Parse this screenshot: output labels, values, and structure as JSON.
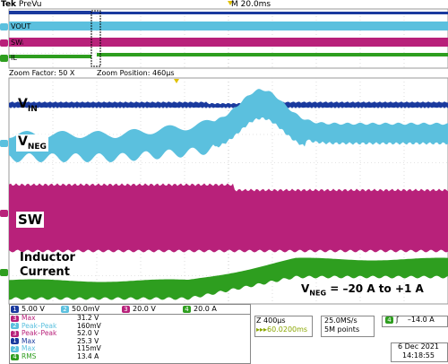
{
  "header": {
    "brand": "Tek",
    "mode": "PreVu",
    "timebase_top": "M 20.0ms"
  },
  "overview": {
    "labels": {
      "vout": "VOUT",
      "sw": "SWᵢ",
      "il": "IL"
    }
  },
  "zoom": {
    "factor": "Zoom Factor: 50 X",
    "position": "Zoom Position: 460µs"
  },
  "traces": {
    "vin": {
      "label": "V",
      "sub": "IN"
    },
    "vneg": {
      "label": "V",
      "sub": "NEG"
    },
    "sw": {
      "label": "SW"
    },
    "inductor": {
      "line1": "Inductor",
      "line2": "Current"
    }
  },
  "annotation": {
    "text_pre": "V",
    "sub": "NEG",
    "text_post": " = –20 A to +1 A"
  },
  "channels": [
    {
      "num": "1",
      "value": "5.00 V",
      "color": "#1a3a9e"
    },
    {
      "num": "2",
      "value": "50.0mV",
      "color": "#5bc0de"
    },
    {
      "num": "3",
      "value": "20.0 V",
      "color": "#b8217a"
    },
    {
      "num": "4",
      "value": "20.0 A",
      "color": "#2e9e1f"
    }
  ],
  "measurements": [
    {
      "ch": "3",
      "name": "Max",
      "value": "31.2 V",
      "color": "#b8217a"
    },
    {
      "ch": "2",
      "name": "Peak–Peak",
      "value": "160mV",
      "color": "#5bc0de"
    },
    {
      "ch": "3",
      "name": "Peak–Peak",
      "value": "52.0 V",
      "color": "#b8217a"
    },
    {
      "ch": "1",
      "name": "Max",
      "value": "25.3 V",
      "color": "#1a3a9e"
    },
    {
      "ch": "2",
      "name": "Max",
      "value": "115mV",
      "color": "#5bc0de"
    },
    {
      "ch": "4",
      "name": "RMS",
      "value": "13.4 A",
      "color": "#2e9e1f"
    }
  ],
  "timebase": {
    "zoom": "Z 400µs",
    "delay": "▸▸▸60.0200ms"
  },
  "acquisition": {
    "rate": "25.0MS/s",
    "points": "5M points"
  },
  "trigger": {
    "ch": "4",
    "slope": "ʃ",
    "level": "–14.0 A"
  },
  "datetime": {
    "date": "6 Dec  2021",
    "time": "14:18:55"
  },
  "colors": {
    "ch1": "#1a3a9e",
    "ch2": "#5bc0de",
    "ch3": "#b8217a",
    "ch4": "#2e9e1f",
    "grid": "#c8c8c8"
  }
}
